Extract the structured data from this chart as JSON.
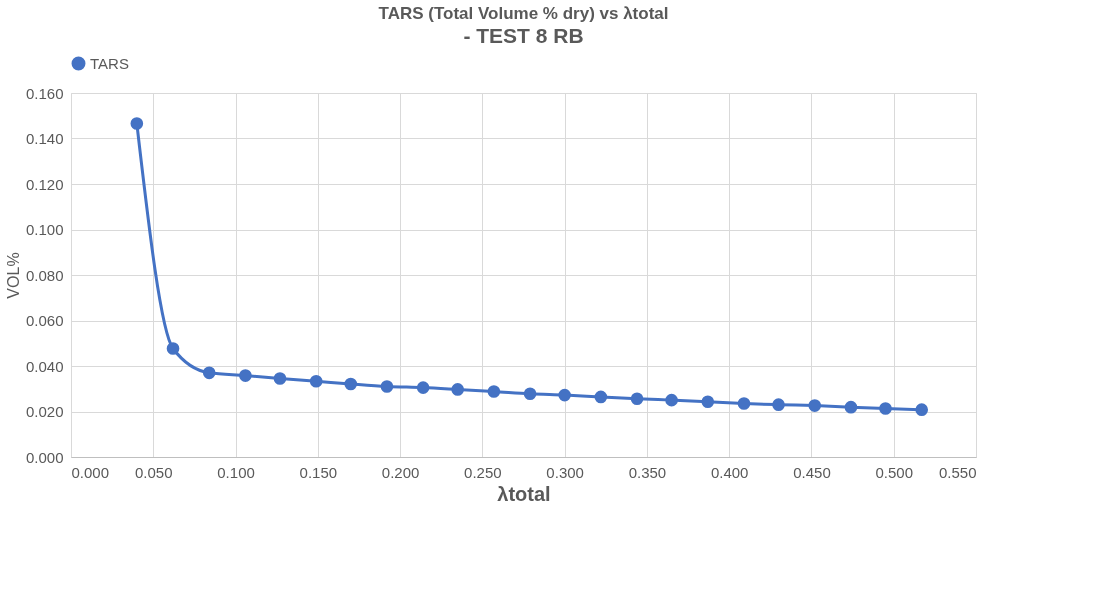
{
  "chart_data": {
    "type": "line",
    "title": "TARS (Total Volume % dry) vs λtotal",
    "subtitle": "- TEST 8 RB",
    "xlabel": "λtotal",
    "ylabel": "VOL%",
    "x": [
      0.04,
      0.062,
      0.084,
      0.106,
      0.127,
      0.149,
      0.17,
      0.192,
      0.214,
      0.235,
      0.257,
      0.279,
      0.3,
      0.322,
      0.344,
      0.365,
      0.387,
      0.409,
      0.43,
      0.452,
      0.474,
      0.495,
      0.517
    ],
    "series": [
      {
        "name": "TARS",
        "color": "#4472c4",
        "values": [
          0.1466,
          0.0477,
          0.037,
          0.0358,
          0.0345,
          0.0333,
          0.0321,
          0.031,
          0.0305,
          0.0297,
          0.0288,
          0.0278,
          0.0272,
          0.0264,
          0.0256,
          0.025,
          0.0243,
          0.0235,
          0.023,
          0.0226,
          0.0219,
          0.0213,
          0.0208
        ]
      }
    ],
    "xlim": [
      0,
      0.55
    ],
    "ylim": [
      0,
      0.16
    ],
    "xticks": [
      {
        "value": 0,
        "label": "0.000"
      },
      {
        "value": 0.05,
        "label": "0.050"
      },
      {
        "value": 0.1,
        "label": "0.100"
      },
      {
        "value": 0.15,
        "label": "0.150"
      },
      {
        "value": 0.2,
        "label": "0.200"
      },
      {
        "value": 0.25,
        "label": "0.250"
      },
      {
        "value": 0.3,
        "label": "0.300"
      },
      {
        "value": 0.35,
        "label": "0.350"
      },
      {
        "value": 0.4,
        "label": "0.400"
      },
      {
        "value": 0.45,
        "label": "0.450"
      },
      {
        "value": 0.5,
        "label": "0.500"
      },
      {
        "value": 0.55,
        "label": "0.550"
      }
    ],
    "yticks": [
      {
        "value": 0,
        "label": "0.000"
      },
      {
        "value": 0.02,
        "label": "0.020"
      },
      {
        "value": 0.04,
        "label": "0.040"
      },
      {
        "value": 0.06,
        "label": "0.060"
      },
      {
        "value": 0.08,
        "label": "0.080"
      },
      {
        "value": 0.1,
        "label": "0.100"
      },
      {
        "value": 0.12,
        "label": "0.120"
      },
      {
        "value": 0.14,
        "label": "0.140"
      },
      {
        "value": 0.16,
        "label": "0.160"
      }
    ],
    "grid": true,
    "legend": "top",
    "marker": "circle",
    "line_style": "solid"
  }
}
